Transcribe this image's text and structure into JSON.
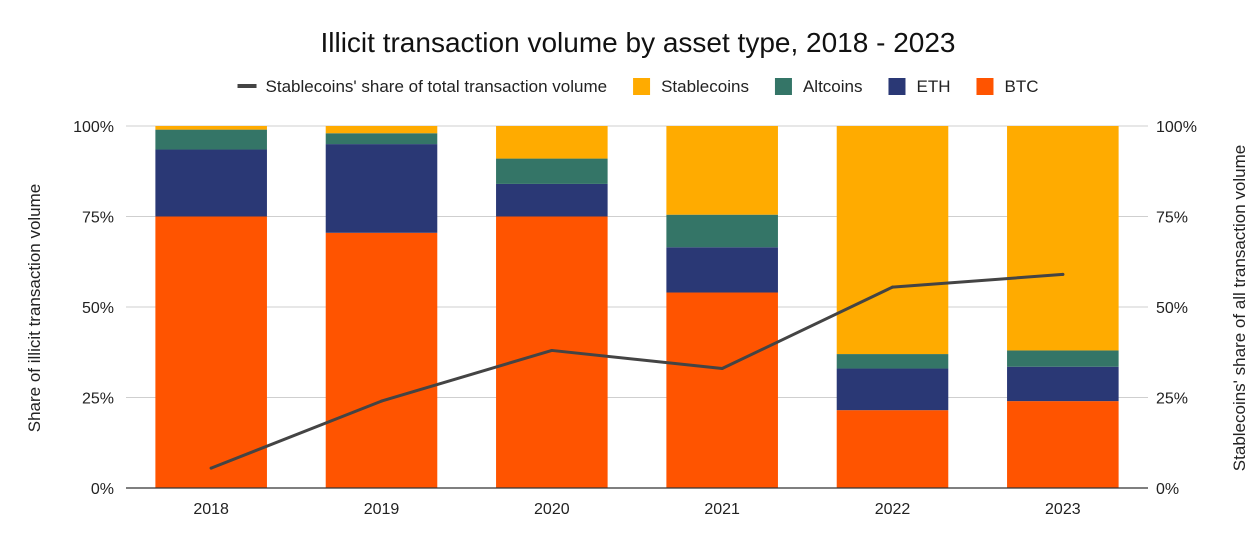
{
  "chart_data": {
    "type": "bar",
    "stacked": true,
    "title": "Illicit transaction volume by asset type, 2018 - 2023",
    "categories": [
      "2018",
      "2019",
      "2020",
      "2021",
      "2022",
      "2023"
    ],
    "ylabel_left": "Share of illicit transaction volume",
    "ylabel_right": "Stablecoins' share of all transaction volume",
    "ylim": [
      0,
      100
    ],
    "y_ticks": [
      "0%",
      "25%",
      "50%",
      "75%",
      "100%"
    ],
    "y_tick_values": [
      0,
      25,
      50,
      75,
      100
    ],
    "grid": true,
    "legend_position": "top",
    "series": [
      {
        "name": "BTC",
        "color": "#ff5400",
        "values": [
          75,
          70.5,
          75,
          54,
          21.5,
          24
        ]
      },
      {
        "name": "ETH",
        "color": "#2a3875",
        "values": [
          18.5,
          24.5,
          9,
          12.5,
          11.5,
          9.5
        ]
      },
      {
        "name": "Altcoins",
        "color": "#347567",
        "values": [
          5.5,
          3,
          7,
          9,
          4,
          4.5
        ]
      },
      {
        "name": "Stablecoins",
        "color": "#ffab00",
        "values": [
          1,
          2,
          9,
          24.5,
          63,
          62
        ]
      }
    ],
    "line_series": {
      "name": "Stablecoins' share of total transaction volume",
      "color": "#444444",
      "values": [
        5.5,
        24,
        38,
        33,
        55.5,
        59
      ]
    },
    "legend_order": [
      "Stablecoins' share of total transaction volume",
      "Stablecoins",
      "Altcoins",
      "ETH",
      "BTC"
    ]
  }
}
